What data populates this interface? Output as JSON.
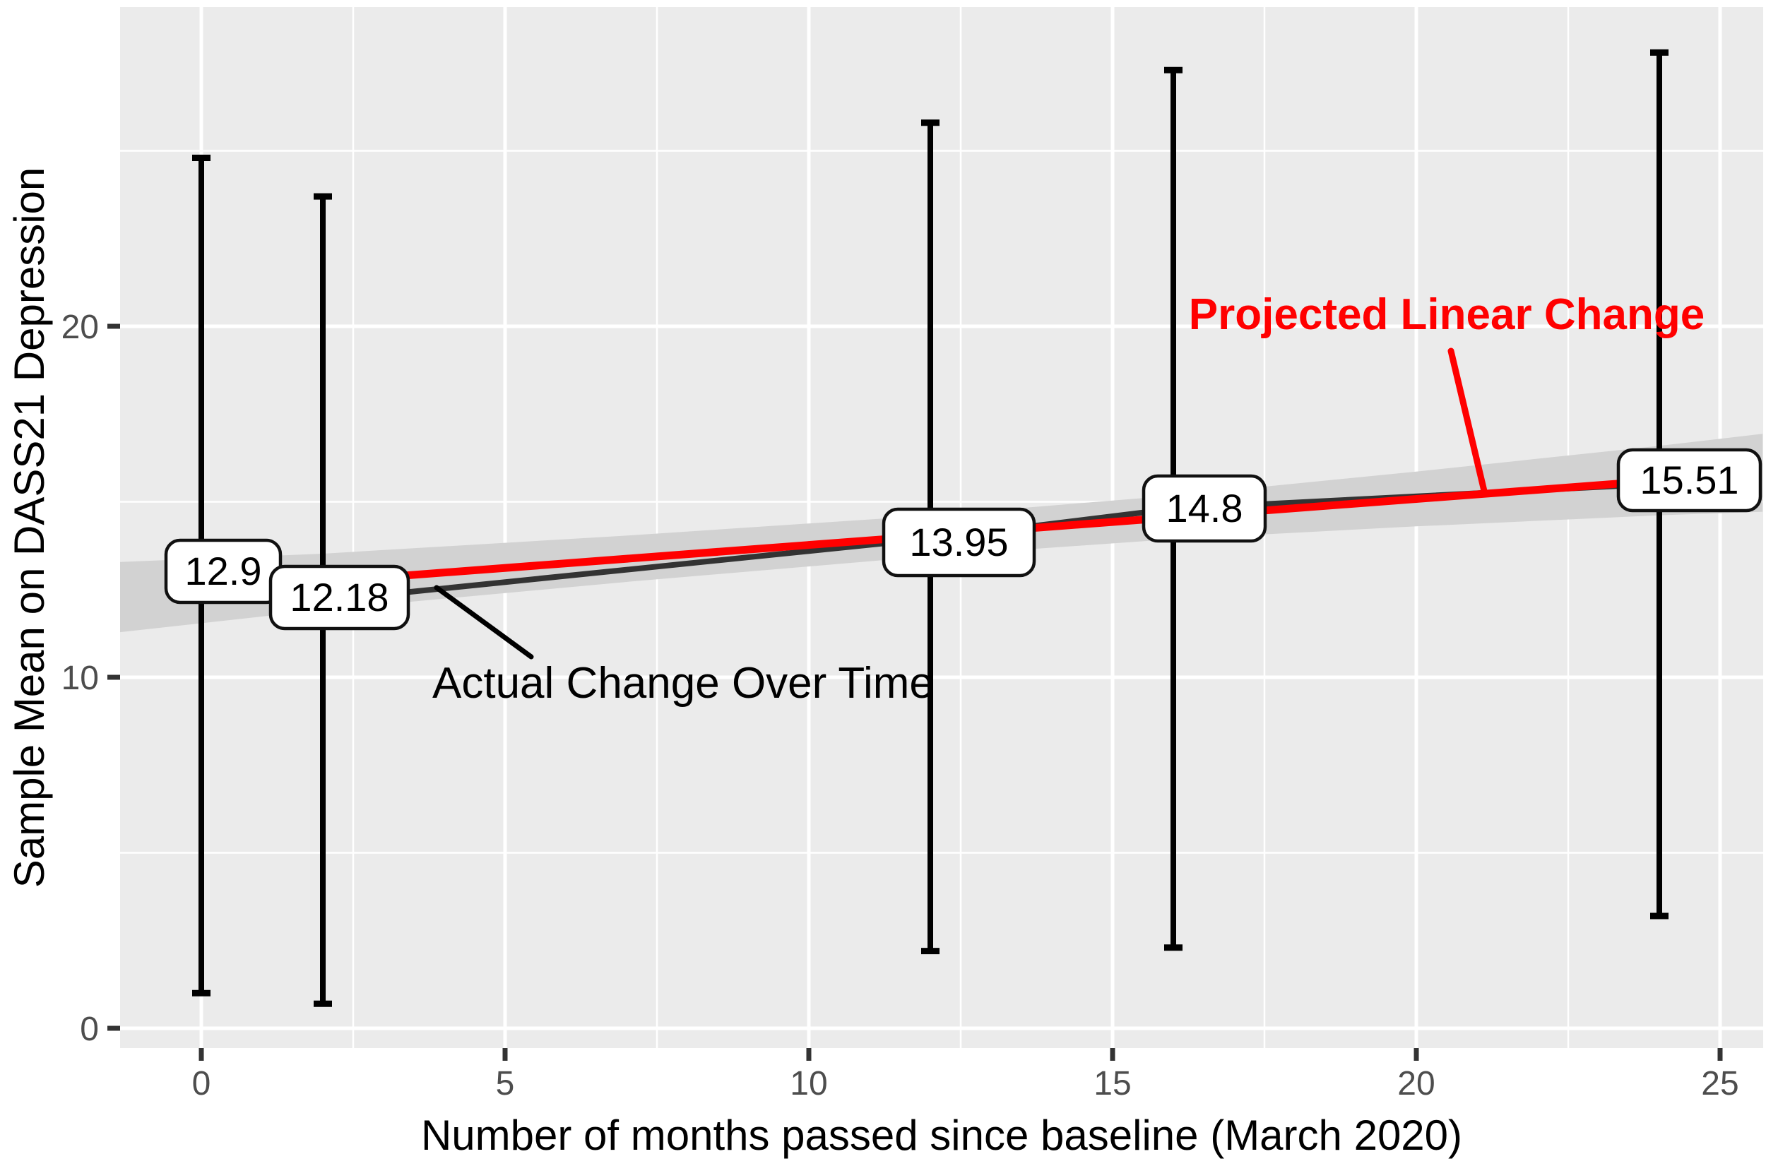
{
  "chart_data": {
    "type": "line",
    "title": "",
    "xlabel": "Number of months passed since baseline (March 2020)",
    "ylabel": "Sample Mean on DASS21 Depression",
    "x_ticks": [
      0,
      5,
      10,
      15,
      20,
      25
    ],
    "y_ticks": [
      0,
      10,
      20
    ],
    "x_tick_labels": [
      "0",
      "5",
      "10",
      "15",
      "20",
      "25"
    ],
    "y_tick_labels": [
      "0",
      "10",
      "20"
    ],
    "xlim": [
      -1.34,
      25.7
    ],
    "ylim": [
      -0.55,
      29.1
    ],
    "grid": {
      "major": "white",
      "minor": "white-thin",
      "panel": "gray"
    },
    "legend_position": "none",
    "points": [
      {
        "x": 0,
        "mean": 12.9,
        "label": "12.9",
        "ci_low": 1.0,
        "ci_high": 24.8
      },
      {
        "x": 2,
        "mean": 12.18,
        "label": "12.18",
        "ci_low": 0.7,
        "ci_high": 23.7
      },
      {
        "x": 12,
        "mean": 13.95,
        "label": "13.95",
        "ci_low": 2.2,
        "ci_high": 25.8
      },
      {
        "x": 16,
        "mean": 14.8,
        "label": "14.8",
        "ci_low": 2.3,
        "ci_high": 27.3
      },
      {
        "x": 24,
        "mean": 15.51,
        "label": "15.51",
        "ci_low": 3.2,
        "ci_high": 27.8
      }
    ],
    "series": [
      {
        "name": "Actual Change Over Time",
        "kind": "polyline",
        "x": [
          0,
          2,
          12,
          16,
          24
        ],
        "y": [
          12.9,
          12.18,
          13.95,
          14.8,
          15.51
        ]
      },
      {
        "name": "Projected Linear Change",
        "kind": "regression",
        "intercept": 12.46,
        "slope": 0.131,
        "x_start": 0,
        "x_end": 25
      }
    ],
    "confidence_band": {
      "around": "regression",
      "points": [
        {
          "x": -1.34,
          "half_width": 1.0
        },
        {
          "x": 2,
          "half_width": 0.8
        },
        {
          "x": 7,
          "half_width": 0.66
        },
        {
          "x": 12,
          "half_width": 0.58
        },
        {
          "x": 16,
          "half_width": 0.62
        },
        {
          "x": 20,
          "half_width": 0.78
        },
        {
          "x": 24,
          "half_width": 0.99
        },
        {
          "x": 25.7,
          "half_width": 1.11
        }
      ]
    },
    "annotations": [
      {
        "text": "Projected Linear Change",
        "color": "#FF0000",
        "bold": true
      },
      {
        "text": "Actual Change Over Time",
        "color": "#000000",
        "bold": false
      }
    ]
  },
  "colors": {
    "panel": "#EBEBEB",
    "grid": "#FFFFFF",
    "band": "#D2D2D2",
    "actual_line": "#333333",
    "projected_line": "#FF0000",
    "error_bar": "#000000",
    "tick_mark": "#333333",
    "tick_text": "#4D4D4D",
    "label_box_fill": "#FFFFFF",
    "label_box_border": "#111111"
  }
}
